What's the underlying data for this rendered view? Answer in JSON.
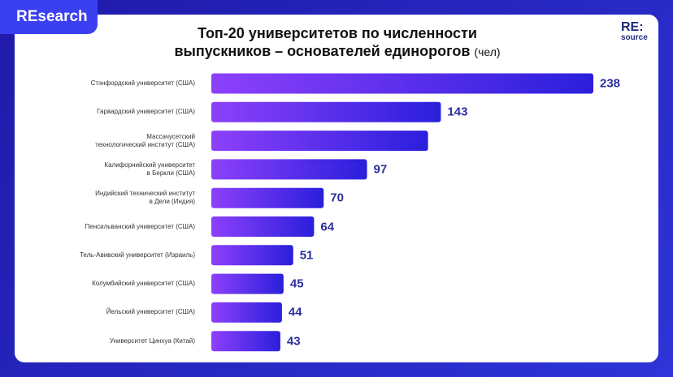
{
  "badge": "REsearch",
  "logo": {
    "line1": "RE:",
    "line2": "source"
  },
  "chart_data": {
    "type": "hbar",
    "title": "Топ-20 университетов по численности\nвыпускников – основателей единорогов",
    "unit": "(чел)",
    "categories": [
      "Стэнфордский университет (США)",
      "Гарвардский университет (США)",
      "Массачусетский\nтехнологический институт (США)",
      "Калифорнийский университет\nв Беркли (США)",
      "Индийский технический институт\nв Дели (Индия)",
      "Пенсильванский университет (США)",
      "Тель-Авивский университет (Израиль)",
      "Колумбийский университет (США)",
      "Йельский университет (США)",
      "Университет Цинхуа (Китай)"
    ],
    "values": [
      238,
      143,
      135,
      97,
      70,
      64,
      51,
      45,
      44,
      43
    ],
    "value_labels": [
      "238",
      "143",
      null,
      "97",
      "70",
      "64",
      "51",
      "45",
      "44",
      "43"
    ],
    "colors": [
      "#8d40fb",
      "#2a1fdc"
    ],
    "xlim": [
      0,
      238
    ]
  }
}
